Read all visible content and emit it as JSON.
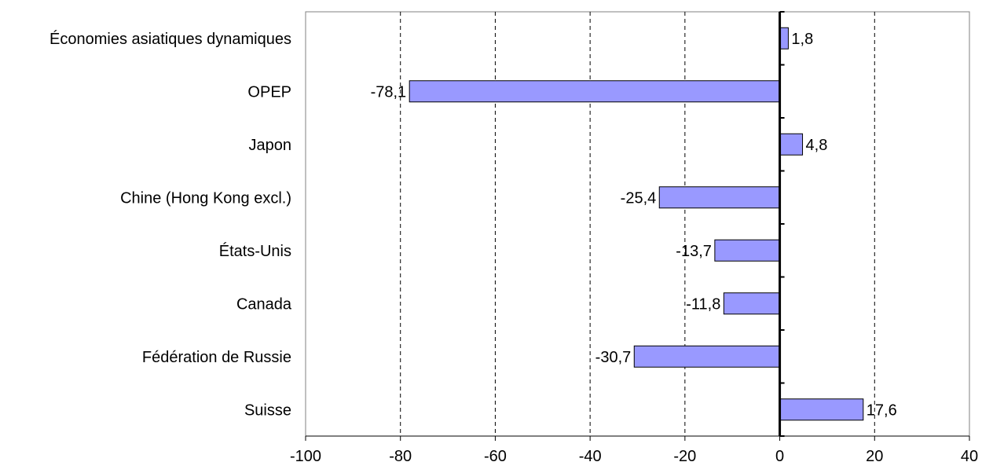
{
  "chart_data": {
    "type": "bar",
    "orientation": "horizontal",
    "categories": [
      "Économies asiatiques dynamiques",
      "OPEP",
      "Japon",
      "Chine (Hong Kong excl.)",
      "États-Unis",
      "Canada",
      "Fédération de Russie",
      "Suisse"
    ],
    "values": [
      1.8,
      -78.1,
      4.8,
      -25.4,
      -13.7,
      -11.8,
      -30.7,
      17.6
    ],
    "value_labels": [
      "1,8",
      "-78,1",
      "4,8",
      "-25,4",
      "-13,7",
      "-11,8",
      "-30,7",
      "17,6"
    ],
    "xlim": [
      -100,
      40
    ],
    "xticks": [
      -100,
      -80,
      -60,
      -40,
      -20,
      0,
      20,
      40
    ],
    "xtick_labels": [
      "-100",
      "-80",
      "-60",
      "-40",
      "-20",
      "0",
      "20",
      "40"
    ],
    "title": "",
    "xlabel": "",
    "ylabel": "",
    "grid": "vertical dashed",
    "legend": "none",
    "colors": {
      "bar_fill": "#9999ff",
      "bar_stroke": "#000000",
      "grid": "#000000",
      "axis": "#000000"
    }
  }
}
